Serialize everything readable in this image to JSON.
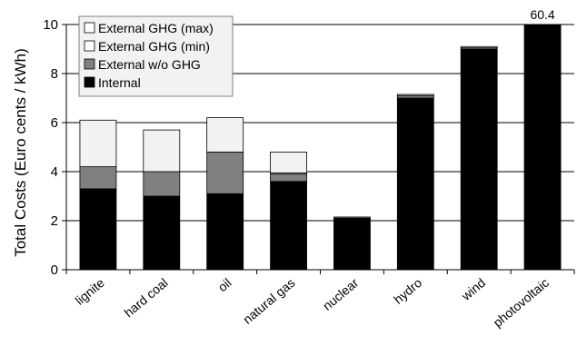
{
  "chart_data": {
    "type": "bar",
    "stacked": true,
    "ylabel": "Total Costs (Euro cents / kWh)",
    "xlabel": "",
    "ylim": [
      0,
      10
    ],
    "yticks": [
      0,
      2,
      4,
      6,
      8,
      10
    ],
    "grid": "horizontal",
    "legend": "top-left",
    "categories": [
      "lignite",
      "hard coal",
      "oil",
      "natural gas",
      "nuclear",
      "hydro",
      "wind",
      "photovoltaic"
    ],
    "series": [
      {
        "name": "Internal",
        "color": "#000000",
        "values": [
          3.3,
          3.0,
          3.1,
          3.6,
          2.1,
          7.0,
          9.0,
          10.0
        ]
      },
      {
        "name": "External w/o GHG",
        "color": "#808080",
        "values": [
          0.9,
          1.0,
          1.7,
          0.3,
          0.05,
          0.1,
          0.05,
          0
        ]
      },
      {
        "name": "External GHG (min)",
        "color": "#ffffff",
        "values": [
          0.0,
          0.0,
          0.0,
          0.05,
          0.0,
          0.0,
          0.0,
          0
        ]
      },
      {
        "name": "External GHG (max)",
        "color": "#f2f2f2",
        "values": [
          1.9,
          1.7,
          1.4,
          0.85,
          0.0,
          0.05,
          0.05,
          0
        ]
      }
    ],
    "annotations": [
      {
        "category": "photovoltaic",
        "text": "60.4"
      }
    ]
  }
}
